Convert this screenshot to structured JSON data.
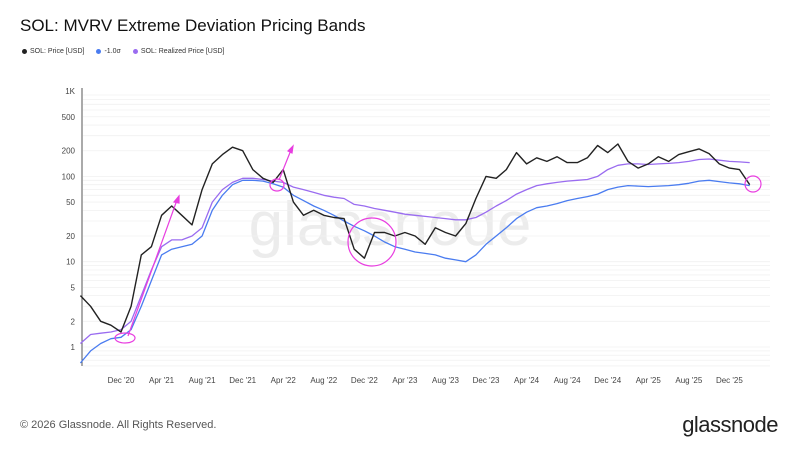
{
  "title": "SOL: MVRV Extreme Deviation Pricing Bands",
  "footer": "© 2026 Glassnode. All Rights Reserved.",
  "logo": "glassnode",
  "watermark": "glassnode",
  "chart_data": {
    "type": "line",
    "title": "SOL: MVRV Extreme Deviation Pricing Bands",
    "yscale": "log",
    "ylim": [
      0.6,
      1000
    ],
    "yticks": [
      "1",
      "2",
      "5",
      "10",
      "20",
      "50",
      "100",
      "200",
      "500",
      "1K"
    ],
    "ytick_values": [
      1,
      2,
      5,
      10,
      20,
      50,
      100,
      200,
      500,
      1000
    ],
    "xticks": [
      "Dec '20",
      "Apr '21",
      "Aug '21",
      "Dec '21",
      "Apr '22",
      "Aug '22",
      "Dec '22",
      "Apr '23",
      "Aug '23",
      "Dec '23",
      "Apr '24",
      "Aug '24",
      "Dec '24",
      "Apr '25",
      "Aug '25",
      "Dec '25"
    ],
    "xtick_dates": [
      "2020-12",
      "2021-04",
      "2021-08",
      "2021-12",
      "2022-04",
      "2022-08",
      "2022-12",
      "2023-04",
      "2023-08",
      "2023-12",
      "2024-04",
      "2024-08",
      "2024-12",
      "2025-04",
      "2025-08",
      "2025-12"
    ],
    "legend_position": "top-left",
    "grid": true,
    "x": [
      "2020-08",
      "2020-09",
      "2020-10",
      "2020-11",
      "2020-12",
      "2021-01",
      "2021-02",
      "2021-03",
      "2021-04",
      "2021-05",
      "2021-06",
      "2021-07",
      "2021-08",
      "2021-09",
      "2021-10",
      "2021-11",
      "2021-12",
      "2022-01",
      "2022-02",
      "2022-03",
      "2022-04",
      "2022-05",
      "2022-06",
      "2022-07",
      "2022-08",
      "2022-09",
      "2022-10",
      "2022-11",
      "2022-12",
      "2023-01",
      "2023-02",
      "2023-03",
      "2023-04",
      "2023-05",
      "2023-06",
      "2023-07",
      "2023-08",
      "2023-09",
      "2023-10",
      "2023-11",
      "2023-12",
      "2024-01",
      "2024-02",
      "2024-03",
      "2024-04",
      "2024-05",
      "2024-06",
      "2024-07",
      "2024-08",
      "2024-09",
      "2024-10",
      "2024-11",
      "2024-12",
      "2025-01",
      "2025-02",
      "2025-03",
      "2025-04",
      "2025-05",
      "2025-06",
      "2025-07",
      "2025-08",
      "2025-09",
      "2025-10",
      "2025-11",
      "2025-12",
      "2026-01",
      "2026-02"
    ],
    "series": [
      {
        "name": "SOL: Price [USD]",
        "color": "#222222",
        "values": [
          4,
          3,
          2,
          1.8,
          1.5,
          3,
          12,
          15,
          35,
          45,
          35,
          27,
          70,
          140,
          180,
          220,
          200,
          120,
          95,
          85,
          120,
          50,
          35,
          40,
          35,
          33,
          32,
          14,
          11,
          22,
          22,
          20,
          22,
          20,
          16,
          25,
          22,
          20,
          28,
          55,
          100,
          95,
          120,
          190,
          140,
          165,
          150,
          170,
          145,
          145,
          165,
          230,
          190,
          240,
          150,
          125,
          140,
          170,
          150,
          180,
          195,
          210,
          185,
          140,
          125,
          120,
          80
        ]
      },
      {
        "name": "-1.0σ",
        "color": "#4a7cf0",
        "values": [
          0.65,
          0.9,
          1.1,
          1.25,
          1.3,
          1.6,
          3,
          6,
          12,
          14,
          15,
          16,
          20,
          40,
          60,
          80,
          90,
          90,
          88,
          82,
          75,
          60,
          52,
          45,
          40,
          35,
          30,
          26,
          23,
          20,
          17,
          15,
          14,
          13,
          12.5,
          12,
          11,
          10.5,
          10,
          12,
          16,
          20,
          25,
          32,
          38,
          43,
          45,
          48,
          52,
          55,
          58,
          62,
          70,
          75,
          78,
          77,
          76,
          77,
          78,
          80,
          83,
          88,
          90,
          87,
          84,
          82,
          78
        ]
      },
      {
        "name": "SOL: Realized Price [USD]",
        "color": "#9a6cf0",
        "values": [
          1.1,
          1.4,
          1.45,
          1.5,
          1.6,
          2,
          4,
          8,
          15,
          18,
          18,
          20,
          25,
          50,
          70,
          85,
          95,
          95,
          92,
          88,
          85,
          75,
          70,
          65,
          60,
          57,
          55,
          47,
          45,
          42,
          40,
          38,
          36,
          35,
          34,
          33,
          32,
          31,
          31,
          33,
          38,
          45,
          52,
          62,
          70,
          78,
          82,
          85,
          88,
          90,
          92,
          100,
          120,
          135,
          140,
          140,
          138,
          140,
          142,
          145,
          150,
          158,
          160,
          155,
          150,
          148,
          145
        ]
      }
    ],
    "annotation_color": "#e83ee0"
  }
}
